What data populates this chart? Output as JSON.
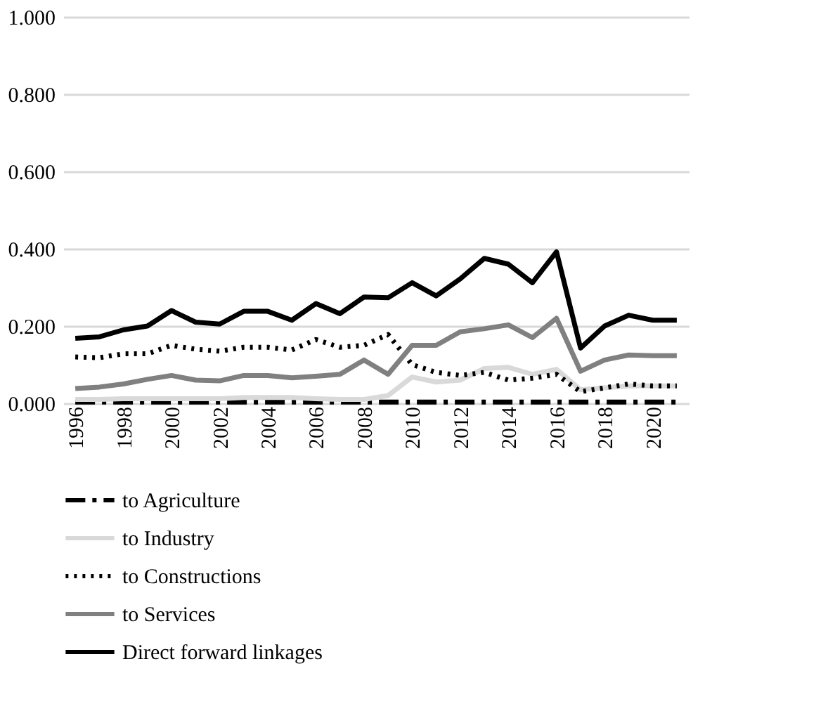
{
  "chart_data": {
    "type": "line",
    "x": [
      1996,
      1997,
      1998,
      1999,
      2000,
      2001,
      2002,
      2003,
      2004,
      2005,
      2006,
      2007,
      2008,
      2009,
      2010,
      2011,
      2012,
      2013,
      2014,
      2015,
      2016,
      2017,
      2018,
      2019,
      2020,
      2021
    ],
    "series": [
      {
        "name": "to Agriculture",
        "color": "#000000",
        "line_style": "dashed",
        "values": [
          0.003,
          0.003,
          0.003,
          0.003,
          0.003,
          0.003,
          0.003,
          0.003,
          0.003,
          0.003,
          0.003,
          0.003,
          0.003,
          0.003,
          0.003,
          0.003,
          0.003,
          0.003,
          0.003,
          0.003,
          0.003,
          0.003,
          0.003,
          0.003,
          0.003,
          0.003
        ]
      },
      {
        "name": "to Industry",
        "color": "#d9d9d9",
        "line_style": "solid",
        "values": [
          0.01,
          0.01,
          0.012,
          0.012,
          0.012,
          0.012,
          0.012,
          0.015,
          0.015,
          0.015,
          0.012,
          0.01,
          0.01,
          0.02,
          0.068,
          0.055,
          0.06,
          0.09,
          0.093,
          0.075,
          0.088,
          0.035,
          0.04,
          0.045,
          0.045,
          0.045
        ]
      },
      {
        "name": "to Constructions",
        "color": "#000000",
        "line_style": "dotted",
        "values": [
          0.12,
          0.118,
          0.128,
          0.128,
          0.15,
          0.14,
          0.135,
          0.145,
          0.145,
          0.138,
          0.165,
          0.145,
          0.15,
          0.178,
          0.1,
          0.08,
          0.072,
          0.08,
          0.06,
          0.065,
          0.075,
          0.03,
          0.04,
          0.05,
          0.045,
          0.045
        ]
      },
      {
        "name": "to Services",
        "color": "#808080",
        "line_style": "solid",
        "values": [
          0.038,
          0.042,
          0.05,
          0.062,
          0.072,
          0.06,
          0.058,
          0.072,
          0.072,
          0.066,
          0.07,
          0.075,
          0.112,
          0.075,
          0.15,
          0.15,
          0.185,
          0.193,
          0.203,
          0.17,
          0.22,
          0.083,
          0.112,
          0.125,
          0.123,
          0.123
        ]
      },
      {
        "name": "Direct forward linkages",
        "color": "#000000",
        "line_style": "solid",
        "values": [
          0.168,
          0.172,
          0.19,
          0.2,
          0.24,
          0.21,
          0.205,
          0.238,
          0.238,
          0.215,
          0.258,
          0.232,
          0.275,
          0.273,
          0.312,
          0.278,
          0.322,
          0.375,
          0.36,
          0.312,
          0.392,
          0.143,
          0.2,
          0.228,
          0.215,
          0.215
        ]
      }
    ],
    "xlim": [
      1995.5,
      2021.5
    ],
    "xticks": [
      1996,
      1998,
      2000,
      2002,
      2004,
      2006,
      2008,
      2010,
      2012,
      2014,
      2016,
      2018,
      2020
    ],
    "ylim": [
      0,
      1
    ],
    "yticks": [
      {
        "value": 0,
        "label": "0.000"
      },
      {
        "value": 0.2,
        "label": "0.200"
      },
      {
        "value": 0.4,
        "label": "0.400"
      },
      {
        "value": 0.6,
        "label": "0.600"
      },
      {
        "value": 0.8,
        "label": "0.800"
      },
      {
        "value": 1,
        "label": "1.000"
      }
    ],
    "grid": "y",
    "legend": "bottom",
    "marker": "none"
  }
}
